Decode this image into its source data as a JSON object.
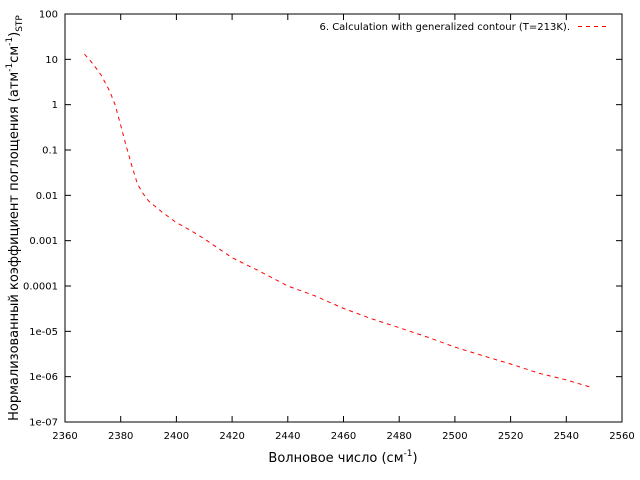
{
  "chart_data": {
    "type": "line",
    "xlabel": "Волновое число (см",
    "xlabel_sup": "-1",
    "xlabel_end": ")",
    "ylabel_main": "Нормализованный коэффициент поглощения (атм",
    "ylabel_sup1": "-1",
    "ylabel_mid": "см",
    "ylabel_sup2": "-1",
    "ylabel_end": ")",
    "ylabel_sub": "STP",
    "xlim": [
      2360,
      2560
    ],
    "ylim": [
      1e-07,
      100
    ],
    "yscale": "log",
    "grid": false,
    "legend_position": "top-right",
    "x_ticks": [
      2360,
      2380,
      2400,
      2420,
      2440,
      2460,
      2480,
      2500,
      2520,
      2540,
      2560
    ],
    "y_ticks": [
      {
        "value": 100,
        "label": "100"
      },
      {
        "value": 10,
        "label": "10"
      },
      {
        "value": 1,
        "label": "1"
      },
      {
        "value": 0.1,
        "label": "0.1"
      },
      {
        "value": 0.01,
        "label": "0.01"
      },
      {
        "value": 0.001,
        "label": "0.001"
      },
      {
        "value": 0.0001,
        "label": "0.0001"
      },
      {
        "value": 1e-05,
        "label": "1e-05"
      },
      {
        "value": 1e-06,
        "label": "1e-06"
      },
      {
        "value": 1e-07,
        "label": "1e-07"
      }
    ],
    "series": [
      {
        "name": "6. Calculation with generalized contour (T=213K).",
        "color": "#ff0000",
        "dash": "dashed",
        "x": [
          2367,
          2370,
          2373,
          2376,
          2378,
          2380,
          2382,
          2384,
          2386,
          2388,
          2390,
          2395,
          2400,
          2405,
          2410,
          2415,
          2420,
          2430,
          2440,
          2450,
          2460,
          2470,
          2480,
          2490,
          2500,
          2510,
          2520,
          2530,
          2540,
          2549
        ],
        "y": [
          13,
          8,
          4.5,
          2,
          1,
          0.35,
          0.12,
          0.045,
          0.018,
          0.011,
          0.0075,
          0.0042,
          0.0025,
          0.0017,
          0.0011,
          0.00068,
          0.00042,
          0.00021,
          0.0001,
          6e-05,
          3.2e-05,
          1.9e-05,
          1.2e-05,
          7.5e-06,
          4.5e-06,
          2.9e-06,
          1.9e-06,
          1.2e-06,
          8.5e-07,
          5.8e-07
        ]
      }
    ]
  }
}
